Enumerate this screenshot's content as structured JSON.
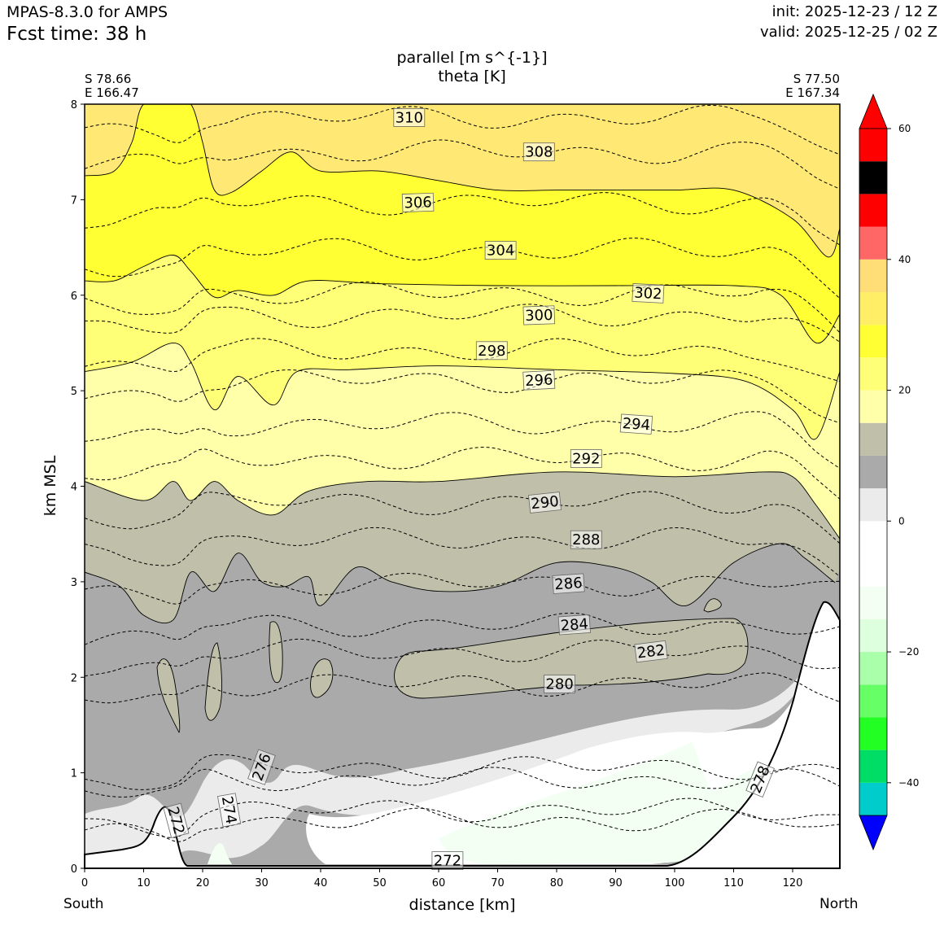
{
  "header": {
    "model": "MPAS-8.3.0 for AMPS",
    "fcst_time": "Fcst time:   38 h",
    "init": "init: 2025-12-23 / 12 Z",
    "valid": "valid: 2025-12-25 / 02 Z"
  },
  "endpoints": {
    "left_lat": "S 78.66",
    "left_lon": "E 166.47",
    "right_lat": "S 77.50",
    "right_lon": "E 167.34",
    "left_dir": "South",
    "right_dir": "North"
  },
  "chart_data": {
    "type": "contour",
    "title": "parallel [m s^{-1}]",
    "subtitle": "theta [K]",
    "xlabel": "distance [km]",
    "ylabel": "km MSL",
    "xlim": [
      0,
      128
    ],
    "ylim": [
      0,
      8
    ],
    "x_ticks": [
      0,
      10,
      20,
      30,
      40,
      50,
      60,
      70,
      80,
      90,
      100,
      110,
      120
    ],
    "y_ticks": [
      0,
      1,
      2,
      3,
      4,
      5,
      6,
      7,
      8
    ],
    "colorbar": {
      "levels": [
        -50,
        -45,
        -40,
        -35,
        -30,
        -25,
        -20,
        -15,
        -10,
        -5,
        0,
        5,
        10,
        15,
        20,
        25,
        30,
        35,
        40,
        45,
        50,
        55
      ],
      "colors": [
        "#0000ff",
        "#0000ff",
        "#00cccc",
        "#00dd66",
        "#22ff22",
        "#66ff66",
        "#aaffaa",
        "#ddffdd",
        "#f2fff2",
        "#ffffff",
        "#ffffff",
        "#ebebeb",
        "#aaaaaa",
        "#bfbfaa",
        "#ffffaa",
        "#ffff77",
        "#ffff33",
        "#ffee66",
        "#ffdd77",
        "#ff6666",
        "#ff0000"
      ],
      "tick_labels": [
        "60",
        "40",
        "20",
        "0",
        "−20",
        "−40"
      ],
      "tick_values": [
        60,
        40,
        20,
        0,
        -20,
        -40
      ]
    },
    "wind_bands": [
      {
        "name": "above 45",
        "color": "#ff6666",
        "top": [],
        "bottom": []
      },
      {
        "name": "35-45",
        "color": "#ffe873",
        "top_km": 8.0,
        "bottom_profile": [
          [
            0,
            7.25
          ],
          [
            5,
            7.3
          ],
          [
            8,
            7.6
          ],
          [
            10,
            8.0
          ],
          [
            15,
            8.0
          ],
          [
            18,
            8.0
          ],
          [
            20,
            7.6
          ],
          [
            22,
            7.1
          ],
          [
            25,
            7.08
          ],
          [
            30,
            7.3
          ],
          [
            35,
            7.5
          ],
          [
            40,
            7.3
          ],
          [
            50,
            7.3
          ],
          [
            60,
            7.2
          ],
          [
            70,
            7.1
          ],
          [
            80,
            7.1
          ],
          [
            90,
            7.1
          ],
          [
            100,
            7.1
          ],
          [
            110,
            7.1
          ],
          [
            120,
            6.8
          ],
          [
            126,
            6.4
          ],
          [
            128,
            6.7
          ]
        ]
      },
      {
        "name": "30-35",
        "color": "#ffff33",
        "bottom_profile": [
          [
            0,
            6.15
          ],
          [
            5,
            6.15
          ],
          [
            10,
            6.3
          ],
          [
            15,
            6.42
          ],
          [
            18,
            6.25
          ],
          [
            22,
            5.98
          ],
          [
            26,
            6.05
          ],
          [
            32,
            6.0
          ],
          [
            38,
            6.15
          ],
          [
            50,
            6.12
          ],
          [
            70,
            6.1
          ],
          [
            90,
            6.1
          ],
          [
            110,
            6.1
          ],
          [
            118,
            6.0
          ],
          [
            124,
            5.5
          ],
          [
            128,
            5.8
          ]
        ]
      },
      {
        "name": "25-30",
        "color": "#ffff77",
        "bottom_profile": [
          [
            0,
            5.2
          ],
          [
            8,
            5.3
          ],
          [
            15,
            5.5
          ],
          [
            18,
            5.3
          ],
          [
            22,
            4.8
          ],
          [
            26,
            5.15
          ],
          [
            32,
            4.85
          ],
          [
            36,
            5.2
          ],
          [
            45,
            5.22
          ],
          [
            60,
            5.26
          ],
          [
            80,
            5.22
          ],
          [
            100,
            5.18
          ],
          [
            112,
            5.1
          ],
          [
            120,
            4.8
          ],
          [
            124,
            4.5
          ],
          [
            128,
            5.2
          ]
        ]
      },
      {
        "name": "20-25",
        "color": "#ffffaa",
        "bottom_profile": [
          [
            0,
            4.05
          ],
          [
            10,
            3.85
          ],
          [
            15,
            4.05
          ],
          [
            18,
            3.85
          ],
          [
            22,
            4.05
          ],
          [
            26,
            3.85
          ],
          [
            32,
            3.7
          ],
          [
            38,
            3.95
          ],
          [
            48,
            4.05
          ],
          [
            60,
            4.05
          ],
          [
            80,
            4.15
          ],
          [
            100,
            4.1
          ],
          [
            115,
            4.15
          ],
          [
            120,
            4.1
          ],
          [
            124,
            3.8
          ],
          [
            128,
            3.45
          ]
        ]
      }
    ],
    "theta_contours_K": [
      272,
      274,
      276,
      278,
      280,
      282,
      284,
      286,
      288,
      290,
      292,
      294,
      296,
      298,
      300,
      302,
      304,
      306,
      308,
      310
    ],
    "theta_labels": [
      {
        "text": "310",
        "x": 55.0,
        "y": 7.86,
        "rot": 0
      },
      {
        "text": "308",
        "x": 77.0,
        "y": 7.5,
        "rot": 0
      },
      {
        "text": "306",
        "x": 56.5,
        "y": 6.97,
        "rot": -2
      },
      {
        "text": "304",
        "x": 70.5,
        "y": 6.47,
        "rot": 0
      },
      {
        "text": "302",
        "x": 95.5,
        "y": 6.02,
        "rot": 3
      },
      {
        "text": "300",
        "x": 77.0,
        "y": 5.79,
        "rot": -2
      },
      {
        "text": "298",
        "x": 69.0,
        "y": 5.42,
        "rot": 0
      },
      {
        "text": "296",
        "x": 77.0,
        "y": 5.11,
        "rot": -3
      },
      {
        "text": "294",
        "x": 93.5,
        "y": 4.65,
        "rot": 4
      },
      {
        "text": "292",
        "x": 85.0,
        "y": 4.29,
        "rot": 0
      },
      {
        "text": "290",
        "x": 78.0,
        "y": 3.83,
        "rot": -6
      },
      {
        "text": "288",
        "x": 85.0,
        "y": 3.44,
        "rot": 0
      },
      {
        "text": "286",
        "x": 82.0,
        "y": 2.98,
        "rot": -4
      },
      {
        "text": "284",
        "x": 83.0,
        "y": 2.55,
        "rot": -4
      },
      {
        "text": "282",
        "x": 96.0,
        "y": 2.27,
        "rot": -7
      },
      {
        "text": "280",
        "x": 80.5,
        "y": 1.93,
        "rot": 0
      },
      {
        "text": "278",
        "x": 114.5,
        "y": 0.93,
        "rot": -68
      },
      {
        "text": "276",
        "x": 30.0,
        "y": 1.06,
        "rot": -70
      },
      {
        "text": "274",
        "x": 24.5,
        "y": 0.61,
        "rot": 80
      },
      {
        "text": "272",
        "x": 15.5,
        "y": 0.5,
        "rot": 75
      },
      {
        "text": "272",
        "x": 61.5,
        "y": 0.08,
        "rot": 0
      }
    ]
  }
}
